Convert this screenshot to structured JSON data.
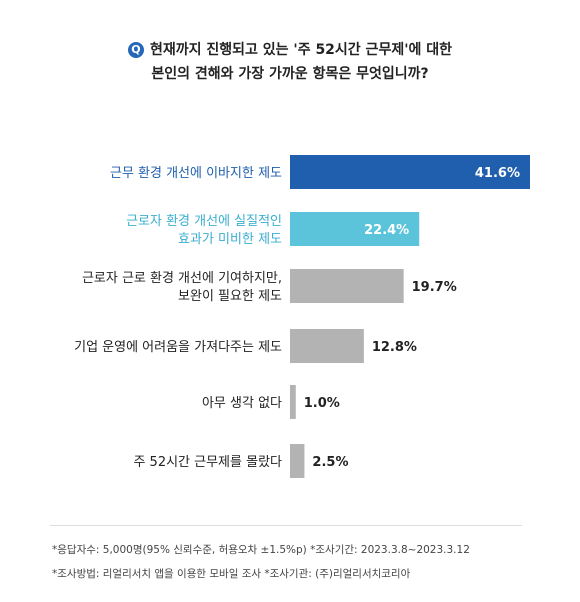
{
  "question": {
    "badge": "Q",
    "line1": "현재까지 진행되고 있는 '주 52시간 근무제'에 대한",
    "line2": "본인의 견해와 가장 가까운 항목은 무엇입니까?"
  },
  "colors": {
    "highlight": "#1f5fae",
    "secondary": "#5bc4da",
    "neutral": "#b3b3b3",
    "label_highlight": "#1f5fae",
    "label_secondary": "#3aaed0",
    "label_neutral": "#222222"
  },
  "chart_data": {
    "type": "bar",
    "orientation": "horizontal",
    "categories": [
      [
        "근무 환경 개선에 이바지한 제도"
      ],
      [
        "근로자 환경 개선에 실질적인",
        "효과가 미비한 제도"
      ],
      [
        "근로자 근로 환경 개선에 기여하지만,",
        "보완이 필요한 제도"
      ],
      [
        "기업 운영에 어려움을 가져다주는 제도"
      ],
      [
        "아무 생각 없다"
      ],
      [
        "주 52시간 근무제를 몰랐다"
      ]
    ],
    "values": [
      41.6,
      22.4,
      19.7,
      12.8,
      1.0,
      2.5
    ],
    "value_labels": [
      "41.6%",
      "22.4%",
      "19.7%",
      "12.8%",
      "1.0%",
      "2.5%"
    ],
    "styles": [
      "highlight",
      "secondary",
      "neutral",
      "neutral",
      "neutral",
      "neutral"
    ],
    "xlim": [
      0,
      41.6
    ],
    "grid": false,
    "legend": "none"
  },
  "footnotes": {
    "line1": "*응답자수: 5,000명(95% 신뢰수준, 허용오차 ±1.5%p)  *조사기간: 2023.3.8~2023.3.12",
    "line2": "*조사방법: 리얼리서치 앱을 이용한 모바일 조사  *조사기관: (주)리얼리서치코리아"
  }
}
